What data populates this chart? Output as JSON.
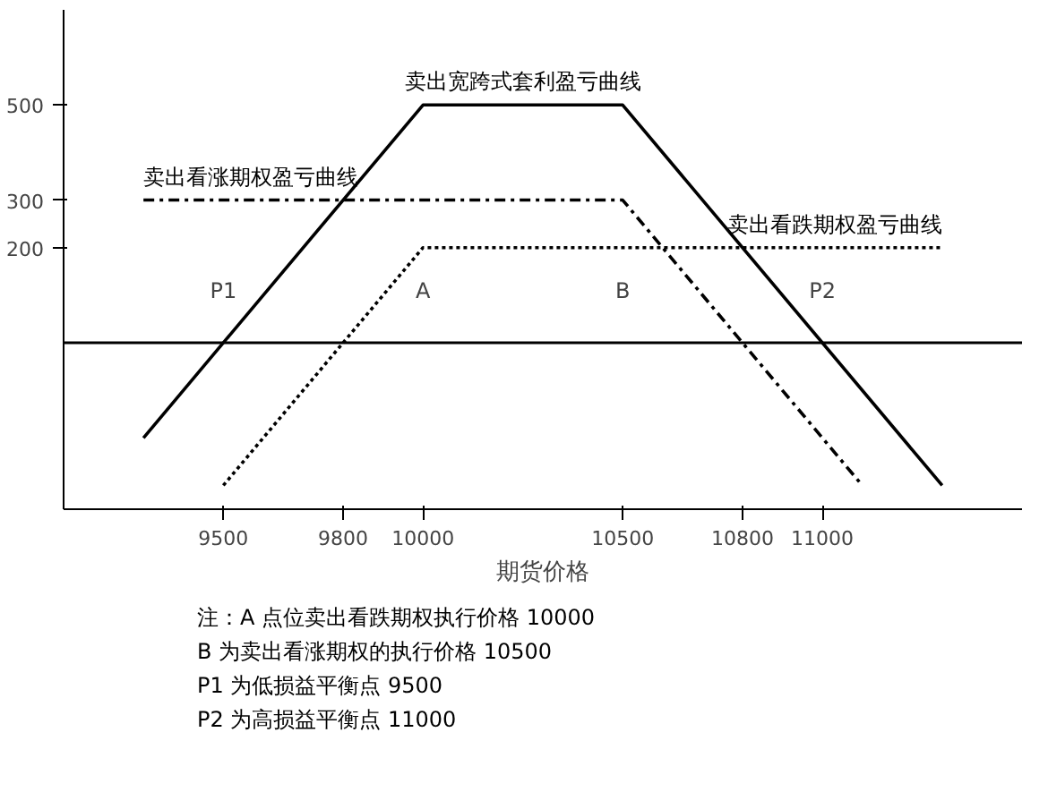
{
  "chart_data": {
    "type": "line",
    "xlabel": "期货价格",
    "xlim": [
      9100,
      11500
    ],
    "ylim": [
      -350,
      700
    ],
    "xticks": [
      9500,
      9800,
      10000,
      10500,
      10800,
      11000
    ],
    "yticks": [
      200,
      300,
      500
    ],
    "grid": false,
    "marker": "none",
    "series": [
      {
        "name": "卖出宽跨式套利盈亏曲线",
        "color": "#000000",
        "line_style": "solid",
        "x": [
          9300,
          10000,
          10500,
          11300
        ],
        "values": [
          -200,
          500,
          500,
          -300
        ]
      },
      {
        "name": "卖出看涨期权盈亏曲线",
        "color": "#000000",
        "line_style": "dashed",
        "x": [
          9300,
          10500,
          11100
        ],
        "values": [
          300,
          300,
          -300
        ]
      },
      {
        "name": "卖出看跌期权盈亏曲线",
        "color": "#000000",
        "line_style": "dotted",
        "x": [
          9500,
          10000,
          11300
        ],
        "values": [
          -300,
          200,
          200
        ]
      }
    ],
    "ref_lines": [
      {
        "axis": "y",
        "value": 0,
        "color": "#000000"
      }
    ],
    "annotations": [
      {
        "text": "P1",
        "x": 9500,
        "y": 0
      },
      {
        "text": "A",
        "x": 10000,
        "y": 0
      },
      {
        "text": "B",
        "x": 10500,
        "y": 0
      },
      {
        "text": "P2",
        "x": 11000,
        "y": 0
      },
      "注：A 点位卖出看跌期权执行价格 10000",
      "B 为卖出看涨期权的执行价格 10500",
      "P1 为低损益平衡点 9500",
      "P2 为高损益平衡点 11000"
    ]
  }
}
